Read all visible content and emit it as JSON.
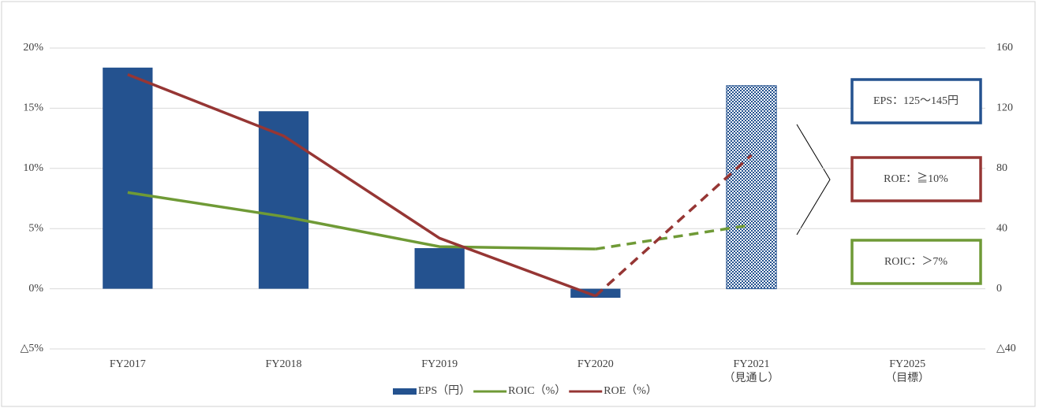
{
  "chart_data": {
    "type": "bar_line",
    "categories": [
      "FY2017",
      "FY2018",
      "FY2019",
      "FY2020",
      "FY2021\n（見通し）",
      "FY2025\n（目標）"
    ],
    "forecast_index": 4,
    "series": [
      {
        "name": "EPS（円）",
        "type": "bar",
        "axis": "y2",
        "color": "#24528f",
        "values": [
          147,
          118,
          27,
          -6,
          135,
          null
        ]
      },
      {
        "name": "ROIC（%）",
        "type": "line",
        "axis": "y",
        "color": "#6f9a36",
        "values": [
          8.0,
          6.0,
          3.5,
          3.3,
          5.3,
          null
        ]
      },
      {
        "name": "ROE（%）",
        "type": "line",
        "axis": "y",
        "color": "#963634",
        "values": [
          17.8,
          12.7,
          4.2,
          -0.6,
          11.1,
          null
        ]
      }
    ],
    "ylim": [
      -5,
      20
    ],
    "yticks": [
      {
        "value": -5,
        "label": "△5%"
      },
      {
        "value": 0,
        "label": "0%"
      },
      {
        "value": 5,
        "label": "5%"
      },
      {
        "value": 10,
        "label": "10%"
      },
      {
        "value": 15,
        "label": "15%"
      },
      {
        "value": 20,
        "label": "20%"
      }
    ],
    "y2lim": [
      -40,
      160
    ],
    "y2ticks": [
      {
        "value": -40,
        "label": "△40"
      },
      0,
      40,
      80,
      120,
      160
    ],
    "grid": true,
    "legend": "bottom",
    "annotations": [
      {
        "text": "EPS：125～145円",
        "color": "#24528f"
      },
      {
        "text": "ROE：≧10%",
        "color": "#963634"
      },
      {
        "text": "ROIC：＞7%",
        "color": "#6f9a36"
      }
    ]
  }
}
